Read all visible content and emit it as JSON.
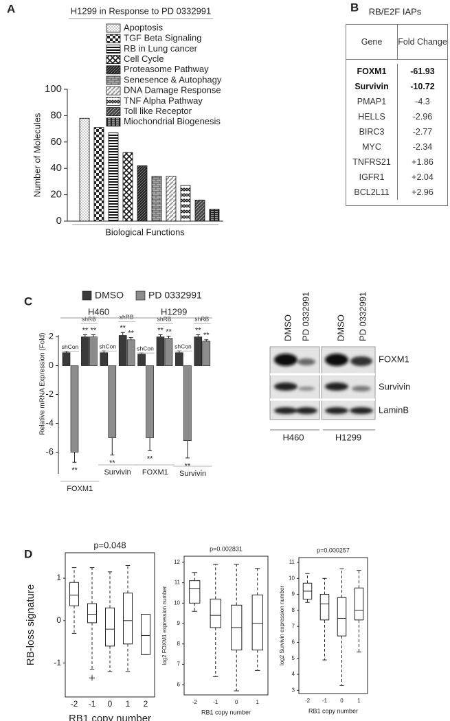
{
  "panel_labels": {
    "a": "A",
    "b": "B",
    "c": "C",
    "d": "D"
  },
  "chart_data": [
    {
      "type": "bar",
      "title": "H1299 in Response to PD 0332991",
      "categories": [
        "Apoptosis",
        "TGF Beta Signaling",
        "RB in Lung cancer",
        "Cell Cycle",
        "Proteasome Pathway",
        "Senesence & Autophagy",
        "DNA Damage Response",
        "TNF Alpha Pathway",
        "Toll like Receptor",
        "Miochondrial Biogenesis"
      ],
      "values": [
        78,
        71,
        67,
        52,
        42,
        34,
        34,
        27,
        16,
        9
      ],
      "ylim": [
        0,
        100
      ],
      "yticks": [
        0,
        20,
        40,
        60,
        80,
        100
      ],
      "ylabel": "Number of Molecules",
      "xlabel": "Biological Functions",
      "legend": "top"
    },
    {
      "type": "grouped_bar",
      "ylabel": "Relative mRNA  Expression (Fold)",
      "categories": [
        "shCon",
        "shRB",
        "shCon",
        "shRB",
        "shCon",
        "shRB",
        "shCon",
        "shRB"
      ],
      "cell_lines": [
        "H460",
        "H1299"
      ],
      "genes": [
        "FOXM1",
        "Survivin",
        "FOXM1",
        "Survivin"
      ],
      "series": [
        {
          "name": "DMSO",
          "color": "#3a3a3a",
          "values": [
            0.9,
            2.0,
            0.9,
            2.1,
            0.8,
            2.0,
            0.9,
            2.0
          ],
          "errors": [
            0.1,
            0.15,
            0.12,
            0.2,
            0.08,
            0.15,
            0.12,
            0.15
          ],
          "significance": [
            null,
            "**",
            null,
            "**",
            null,
            "**",
            null,
            "**"
          ]
        },
        {
          "name": "PD 0332991",
          "color": "#8c8c8c",
          "values": [
            -6.0,
            2.0,
            -5.0,
            1.8,
            -5.0,
            1.9,
            -5.2,
            1.7
          ],
          "errors": [
            0.7,
            0.15,
            1.2,
            0.15,
            0.9,
            0.15,
            1.2,
            0.1
          ],
          "significance": [
            "**",
            "**",
            "**",
            "**",
            "**",
            "**",
            "**",
            "**"
          ]
        }
      ],
      "ylim": [
        -7.5,
        2.6
      ],
      "yticks": [
        -6,
        -4,
        -2,
        0,
        2
      ],
      "legend": "top"
    },
    {
      "type": "box",
      "title": "p=0.048",
      "ylabel": "RB-loss signature",
      "xlabel": "RB1 copy number",
      "categories": [
        "-2",
        "-1",
        "0",
        "1",
        "2"
      ],
      "boxes": [
        {
          "whislo": -0.3,
          "q1": 0.35,
          "med": 0.6,
          "q3": 0.9,
          "whishi": 1.25,
          "fliers": []
        },
        {
          "whislo": -1.15,
          "q1": -0.05,
          "med": 0.15,
          "q3": 0.4,
          "whishi": 1.25,
          "fliers": [
            -1.35
          ]
        },
        {
          "whislo": -1.2,
          "q1": -0.6,
          "med": -0.2,
          "q3": 0.3,
          "whishi": 1.15,
          "fliers": []
        },
        {
          "whislo": -1.2,
          "q1": -0.55,
          "med": 0.0,
          "q3": 0.65,
          "whishi": 1.3,
          "fliers": []
        },
        {
          "whislo": -0.8,
          "q1": -0.8,
          "med": -0.35,
          "q3": 0.15,
          "whishi": 0.15,
          "fliers": []
        }
      ],
      "ylim": [
        -1.8,
        1.6
      ],
      "yticks": [
        -1,
        0,
        1
      ]
    },
    {
      "type": "box",
      "title": "p=0.002831",
      "ylabel": "log2 FOXM1 expression number",
      "xlabel": "RB1 copy number",
      "categories": [
        "-2",
        "-1",
        "0",
        "1"
      ],
      "boxes": [
        {
          "whislo": 9.6,
          "q1": 10.0,
          "med": 10.7,
          "q3": 11.1,
          "whishi": 11.5,
          "fliers": []
        },
        {
          "whislo": 6.4,
          "q1": 8.8,
          "med": 9.4,
          "q3": 10.2,
          "whishi": 11.9,
          "fliers": []
        },
        {
          "whislo": 5.7,
          "q1": 7.7,
          "med": 8.8,
          "q3": 9.9,
          "whishi": 11.9,
          "fliers": []
        },
        {
          "whislo": 6.7,
          "q1": 7.7,
          "med": 9.0,
          "q3": 10.4,
          "whishi": 11.7,
          "fliers": []
        }
      ],
      "ylim": [
        5.5,
        12.3
      ],
      "yticks": [
        6,
        7,
        8,
        9,
        10,
        11,
        12
      ]
    },
    {
      "type": "box",
      "title": "p=0.000257",
      "ylabel": "log2 Survivin expression number",
      "xlabel": "RB1 copy number",
      "categories": [
        "-2",
        "-1",
        "0",
        "1"
      ],
      "boxes": [
        {
          "whislo": 8.5,
          "q1": 8.7,
          "med": 9.2,
          "q3": 9.7,
          "whishi": 10.3,
          "fliers": []
        },
        {
          "whislo": 4.9,
          "q1": 7.4,
          "med": 8.4,
          "q3": 9.0,
          "whishi": 10.0,
          "fliers": []
        },
        {
          "whislo": 3.3,
          "q1": 6.4,
          "med": 7.5,
          "q3": 8.8,
          "whishi": 10.6,
          "fliers": []
        },
        {
          "whislo": 5.4,
          "q1": 7.4,
          "med": 8.0,
          "q3": 9.4,
          "whishi": 10.5,
          "fliers": []
        }
      ],
      "ylim": [
        2.8,
        11.3
      ],
      "yticks": [
        3,
        4,
        5,
        6,
        7,
        8,
        9,
        10,
        11
      ]
    }
  ],
  "table": {
    "title": "RB/E2F IAPs",
    "header": [
      "Gene",
      "Fold Change"
    ],
    "rows": [
      [
        "FOXM1",
        "-61.93"
      ],
      [
        "Survivin",
        "-10.72"
      ],
      [
        "PMAP1",
        "-4.3"
      ],
      [
        "HELLS",
        "-2.96"
      ],
      [
        "BIRC3",
        "-2.77"
      ],
      [
        "MYC",
        "-2.34"
      ],
      [
        "TNFRS21",
        "+1.86"
      ],
      [
        "IGFR1",
        "+2.04"
      ],
      [
        "BCL2L11",
        "+2.96"
      ]
    ]
  },
  "blot": {
    "lanes": [
      "DMSO",
      "PD 0332991",
      "DMSO",
      "PD 0332991"
    ],
    "proteins": [
      "FOXM1",
      "Survivin",
      "LaminB"
    ],
    "cell_lines": [
      "H460",
      "H1299"
    ]
  }
}
